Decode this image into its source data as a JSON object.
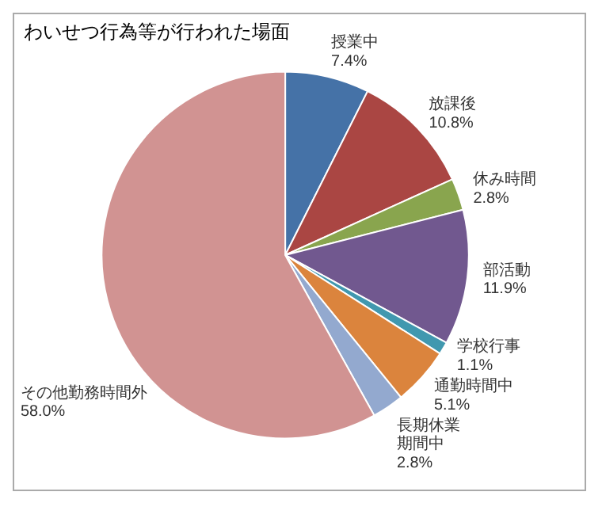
{
  "chart_data": {
    "type": "pie",
    "title": "わいせつ行為等が行われた場面",
    "categories": [
      "授業中",
      "放課後",
      "休み時間",
      "部活動",
      "学校行事",
      "通勤時間中",
      "長期休業期間中",
      "その他勤務時間外"
    ],
    "values": [
      7.4,
      10.8,
      2.8,
      11.9,
      1.1,
      5.1,
      2.8,
      58.0
    ],
    "value_labels": [
      "7.4%",
      "10.8%",
      "2.8%",
      "11.9%",
      "1.1%",
      "5.1%",
      "2.8%",
      "58.0%"
    ],
    "colors": [
      "#4572a7",
      "#aa4643",
      "#89a54e",
      "#71588f",
      "#4198af",
      "#db843d",
      "#93a9cf",
      "#d19392"
    ],
    "legend": false
  }
}
